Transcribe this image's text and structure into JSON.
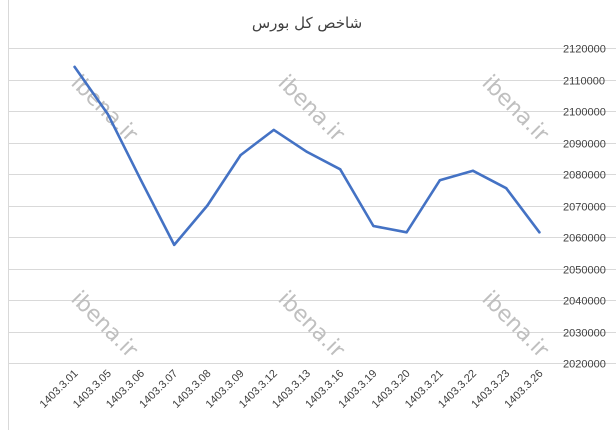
{
  "chart_data": {
    "type": "line",
    "title": "شاخص کل بورس",
    "xlabel": "",
    "ylabel": "",
    "categories": [
      "1403.3.01",
      "1403.3.05",
      "1403.3.06",
      "1403.3.07",
      "1403.3.08",
      "1403.3.09",
      "1403.3.12",
      "1403.3.13",
      "1403.3.16",
      "1403.3.19",
      "1403.3.20",
      "1403.3.21",
      "1403.3.22",
      "1403.3.23",
      "1403.3.26"
    ],
    "series": [
      {
        "values": [
          2114000,
          2099000,
          2078000,
          2057500,
          2070000,
          2086000,
          2094000,
          2087000,
          2081500,
          2063500,
          2061500,
          2078000,
          2081000,
          2075500,
          2061500
        ],
        "color": "#4472c4"
      }
    ],
    "ylim": [
      2020000,
      2120000
    ],
    "yticks": [
      "2020000",
      "2030000",
      "2040000",
      "2050000",
      "2060000",
      "2070000",
      "2080000",
      "2090000",
      "2100000",
      "2110000",
      "2120000"
    ],
    "grid": "horizontal",
    "legend": "none",
    "colors": {
      "gridline": "#d9d9d9",
      "text": "#404040",
      "watermark": "#bfbfbf"
    }
  },
  "watermarks": [
    "ibena.ir",
    "ibena.ir",
    "ibena.ir",
    "ibena.ir",
    "ibena.ir",
    "ibena.ir"
  ]
}
